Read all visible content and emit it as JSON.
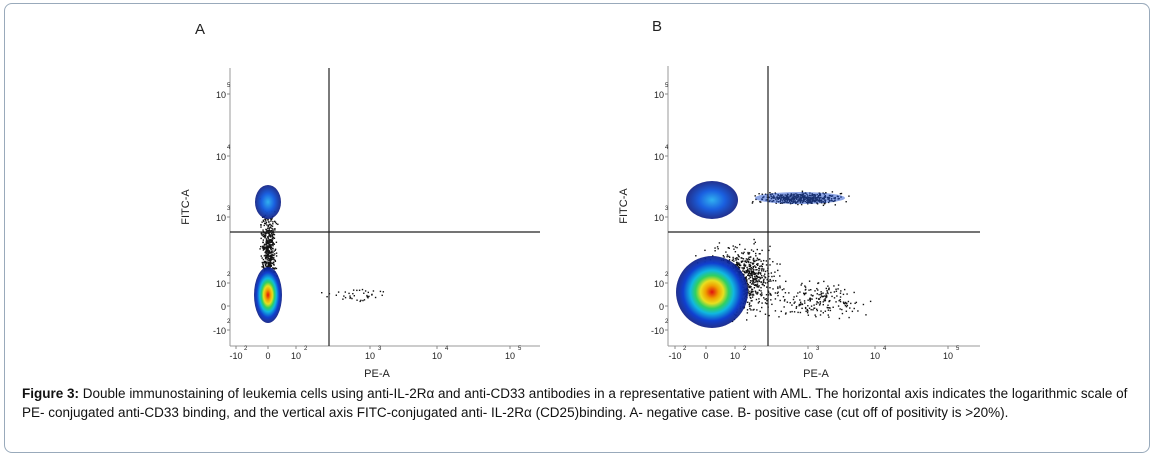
{
  "panels": [
    {
      "label": "A",
      "x_axis_label": "PE-A",
      "y_axis_label": "FITC-A",
      "xticks": [
        {
          "base": "-10",
          "exp": "2"
        },
        {
          "base": "0"
        },
        {
          "base": "10",
          "exp": "2"
        },
        {
          "base": "10",
          "exp": "3"
        },
        {
          "base": "10",
          "exp": "4"
        },
        {
          "base": "10",
          "exp": "5"
        }
      ],
      "yticks": [
        {
          "base": "10",
          "exp": "5"
        },
        {
          "base": "10",
          "exp": "4"
        },
        {
          "base": "10",
          "exp": "3"
        },
        {
          "base": "10",
          "exp": "2"
        },
        {
          "base": "0"
        },
        {
          "base": "-10",
          "exp": "2"
        }
      ]
    },
    {
      "label": "B",
      "x_axis_label": "PE-A",
      "y_axis_label": "FITC-A",
      "xticks": [
        {
          "base": "-10",
          "exp": "2"
        },
        {
          "base": "0"
        },
        {
          "base": "10",
          "exp": "2"
        },
        {
          "base": "10",
          "exp": "3"
        },
        {
          "base": "10",
          "exp": "4"
        },
        {
          "base": "10",
          "exp": "5"
        }
      ],
      "yticks": [
        {
          "base": "10",
          "exp": "5"
        },
        {
          "base": "10",
          "exp": "4"
        },
        {
          "base": "10",
          "exp": "3"
        },
        {
          "base": "10",
          "exp": "2"
        },
        {
          "base": "0"
        },
        {
          "base": "-10",
          "exp": "2"
        }
      ]
    }
  ],
  "caption": {
    "label": "Figure 3:",
    "text": "Double immunostaining of leukemia cells using anti-IL-2Rα and anti-CD33 antibodies in a representative patient with AML. The horizontal axis indicates the logarithmic scale of PE- conjugated anti-CD33 binding, and the vertical axis FITC-conjugated anti- IL-2Rα (CD25)binding. A- negative case. B- positive case (cut off of positivity is >20%)."
  }
}
